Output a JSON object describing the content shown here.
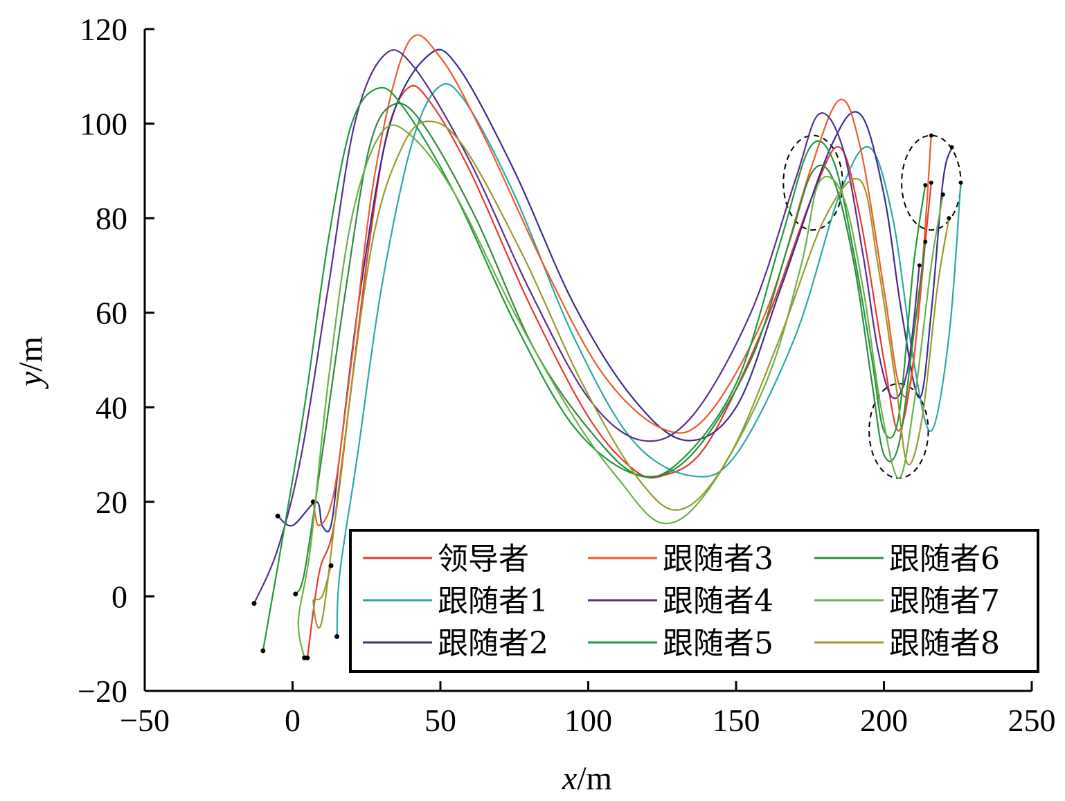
{
  "chart_data": {
    "type": "line",
    "xlabel_var": "x",
    "xlabel_unit": "/m",
    "ylabel_var": "y",
    "ylabel_unit": "/m",
    "xlim": [
      -50,
      250
    ],
    "ylim": [
      -20,
      120
    ],
    "xticks": [
      -50,
      0,
      50,
      100,
      150,
      200,
      250
    ],
    "yticks": [
      -20,
      0,
      20,
      40,
      60,
      80,
      100,
      120
    ],
    "xtick_labels": [
      "−50",
      "0",
      "50",
      "100",
      "150",
      "200",
      "250"
    ],
    "ytick_labels": [
      "−20",
      "0",
      "20",
      "40",
      "60",
      "80",
      "100",
      "120"
    ],
    "grid": false,
    "legend_position": "bottom-right",
    "series": [
      {
        "name": "领导者",
        "color": "#e8382e",
        "start": [
          5,
          -13
        ],
        "points": [
          [
            5,
            -13
          ],
          [
            9,
            5
          ],
          [
            14,
            15
          ],
          [
            20,
            45
          ],
          [
            26,
            75
          ],
          [
            32,
            98
          ],
          [
            39,
            107.5
          ],
          [
            46,
            105
          ],
          [
            60,
            90
          ],
          [
            80,
            62
          ],
          [
            100,
            38
          ],
          [
            115,
            27
          ],
          [
            125,
            25.5
          ],
          [
            140,
            32
          ],
          [
            160,
            58
          ],
          [
            176,
            85
          ],
          [
            185,
            95
          ],
          [
            192,
            80
          ],
          [
            200,
            50
          ],
          [
            205,
            35
          ],
          [
            210,
            50
          ],
          [
            214,
            75
          ],
          [
            216,
            87.5
          ]
        ]
      },
      {
        "name": "跟随者1",
        "color": "#2aa8a8",
        "start": [
          15,
          -8.5
        ],
        "points": [
          [
            15,
            -8.5
          ],
          [
            16,
            5
          ],
          [
            22,
            30
          ],
          [
            30,
            65
          ],
          [
            40,
            95
          ],
          [
            49,
            107.5
          ],
          [
            58,
            105
          ],
          [
            75,
            85
          ],
          [
            95,
            55
          ],
          [
            115,
            33
          ],
          [
            135,
            25.5
          ],
          [
            150,
            30
          ],
          [
            170,
            55
          ],
          [
            185,
            85
          ],
          [
            195,
            95
          ],
          [
            203,
            80
          ],
          [
            210,
            50
          ],
          [
            216,
            35
          ],
          [
            222,
            55
          ],
          [
            226,
            87.5
          ]
        ]
      },
      {
        "name": "跟随者2",
        "color": "#3b2b8f",
        "start": [
          -5,
          17
        ],
        "points": [
          [
            -5,
            17
          ],
          [
            0,
            15
          ],
          [
            8,
            20
          ],
          [
            10,
            15
          ],
          [
            13,
            15
          ],
          [
            16,
            30
          ],
          [
            23,
            65
          ],
          [
            33,
            100
          ],
          [
            46,
            114.5
          ],
          [
            56,
            112
          ],
          [
            75,
            90
          ],
          [
            95,
            62
          ],
          [
            115,
            42
          ],
          [
            133,
            33
          ],
          [
            150,
            40
          ],
          [
            165,
            65
          ],
          [
            182,
            95
          ],
          [
            192,
            102
          ],
          [
            200,
            85
          ],
          [
            206,
            60
          ],
          [
            212,
            42
          ],
          [
            216,
            60
          ],
          [
            220,
            88
          ],
          [
            223,
            95
          ]
        ]
      },
      {
        "name": "跟随者3",
        "color": "#f05a28",
        "start": [
          7,
          20
        ],
        "points": [
          [
            7,
            20
          ],
          [
            9,
            15
          ],
          [
            14,
            22
          ],
          [
            20,
            50
          ],
          [
            28,
            90
          ],
          [
            39,
            117
          ],
          [
            50,
            114
          ],
          [
            65,
            97
          ],
          [
            85,
            70
          ],
          [
            105,
            47
          ],
          [
            125,
            35.5
          ],
          [
            140,
            38
          ],
          [
            160,
            60
          ],
          [
            175,
            90
          ],
          [
            185,
            105
          ],
          [
            192,
            95
          ],
          [
            200,
            65
          ],
          [
            205,
            45
          ],
          [
            209,
            45
          ],
          [
            213,
            70
          ],
          [
            216,
            97.5
          ]
        ]
      },
      {
        "name": "跟随者4",
        "color": "#5a2d8c",
        "start": [
          -13,
          -1.5
        ],
        "points": [
          [
            -13,
            -1.5
          ],
          [
            -5,
            10
          ],
          [
            3,
            30
          ],
          [
            12,
            65
          ],
          [
            21,
            100
          ],
          [
            31,
            114.5
          ],
          [
            41,
            112
          ],
          [
            60,
            92
          ],
          [
            80,
            65
          ],
          [
            100,
            42
          ],
          [
            118,
            33
          ],
          [
            135,
            38
          ],
          [
            155,
            60
          ],
          [
            170,
            88
          ],
          [
            178,
            102
          ],
          [
            186,
            95
          ],
          [
            193,
            72
          ],
          [
            198,
            52
          ],
          [
            203,
            42
          ],
          [
            208,
            48
          ],
          [
            212,
            70
          ]
        ]
      },
      {
        "name": "跟随者5",
        "color": "#1d9a3a",
        "start": [
          -10,
          -11.5
        ],
        "points": [
          [
            -10,
            -11.5
          ],
          [
            -4,
            10
          ],
          [
            4,
            40
          ],
          [
            12,
            75
          ],
          [
            20,
            100
          ],
          [
            29,
            107.5
          ],
          [
            38,
            103
          ],
          [
            55,
            85
          ],
          [
            75,
            58
          ],
          [
            95,
            36
          ],
          [
            115,
            26
          ],
          [
            130,
            28
          ],
          [
            150,
            45
          ],
          [
            165,
            75
          ],
          [
            175,
            95
          ],
          [
            183,
            92
          ],
          [
            190,
            72
          ],
          [
            196,
            50
          ],
          [
            200,
            35
          ],
          [
            205,
            38
          ],
          [
            210,
            70
          ],
          [
            214,
            87
          ]
        ]
      },
      {
        "name": "跟随者6",
        "color": "#2e8b3e",
        "start": [
          1,
          0.5
        ],
        "points": [
          [
            1,
            0.5
          ],
          [
            4,
            5
          ],
          [
            10,
            30
          ],
          [
            18,
            65
          ],
          [
            26,
            95
          ],
          [
            34,
            104
          ],
          [
            44,
            100
          ],
          [
            62,
            80
          ],
          [
            82,
            52
          ],
          [
            102,
            34
          ],
          [
            118,
            25.5
          ],
          [
            135,
            30
          ],
          [
            155,
            50
          ],
          [
            168,
            75
          ],
          [
            176,
            90
          ],
          [
            183,
            88
          ],
          [
            190,
            70
          ],
          [
            196,
            45
          ],
          [
            200,
            30
          ],
          [
            205,
            32
          ],
          [
            210,
            55
          ],
          [
            214,
            75
          ]
        ]
      },
      {
        "name": "跟随者7",
        "color": "#6ab04c",
        "start": [
          4,
          -13
        ],
        "points": [
          [
            4,
            -13
          ],
          [
            2,
            -5
          ],
          [
            6,
            10
          ],
          [
            12,
            45
          ],
          [
            20,
            80
          ],
          [
            30,
            98
          ],
          [
            40,
            97.5
          ],
          [
            55,
            85
          ],
          [
            75,
            60
          ],
          [
            95,
            38
          ],
          [
            110,
            25
          ],
          [
            125,
            15.5
          ],
          [
            140,
            22
          ],
          [
            160,
            45
          ],
          [
            172,
            70
          ],
          [
            178,
            87.5
          ],
          [
            186,
            85
          ],
          [
            193,
            65
          ],
          [
            199,
            40
          ],
          [
            205,
            25
          ],
          [
            210,
            40
          ],
          [
            216,
            70
          ],
          [
            220,
            85
          ]
        ]
      },
      {
        "name": "跟随者8",
        "color": "#9a9a2a",
        "start": [
          13,
          6.5
        ],
        "points": [
          [
            13,
            6.5
          ],
          [
            10,
            0
          ],
          [
            7,
            -1
          ],
          [
            10,
            -5
          ],
          [
            17,
            30
          ],
          [
            27,
            75
          ],
          [
            37,
            95
          ],
          [
            46,
            100.5
          ],
          [
            58,
            95
          ],
          [
            78,
            72
          ],
          [
            98,
            45
          ],
          [
            118,
            24
          ],
          [
            132,
            18.5
          ],
          [
            148,
            30
          ],
          [
            165,
            55
          ],
          [
            180,
            80
          ],
          [
            192,
            88
          ],
          [
            198,
            70
          ],
          [
            204,
            45
          ],
          [
            208,
            28
          ],
          [
            213,
            38
          ],
          [
            218,
            65
          ],
          [
            222,
            80
          ]
        ]
      }
    ],
    "dashed_circles": [
      {
        "cx": 176,
        "cy": 87.5,
        "r": 10
      },
      {
        "cx": 216,
        "cy": 87.5,
        "r": 10
      },
      {
        "cx": 205,
        "cy": 35,
        "r": 10
      }
    ]
  }
}
